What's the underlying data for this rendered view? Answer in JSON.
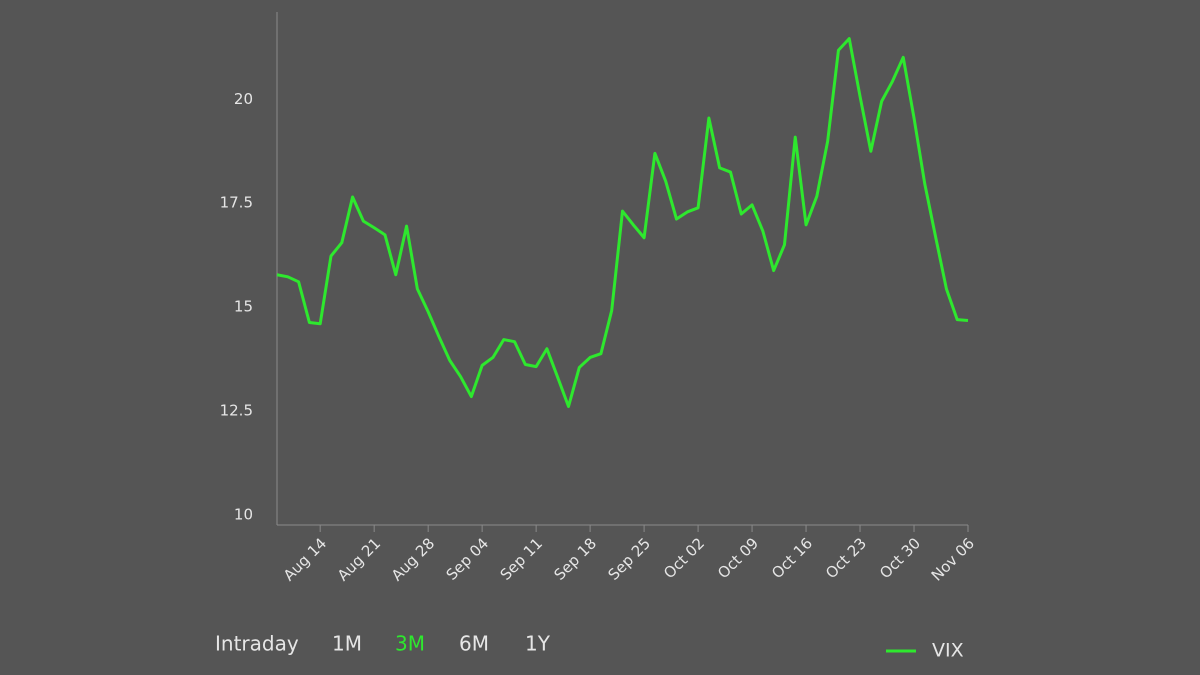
{
  "chart_data": {
    "type": "line",
    "categories": [
      null,
      null,
      null,
      null,
      "Aug 14",
      null,
      null,
      null,
      null,
      "Aug 21",
      null,
      null,
      null,
      null,
      "Aug 28",
      null,
      null,
      null,
      null,
      "Sep 04",
      null,
      null,
      null,
      null,
      "Sep 11",
      null,
      null,
      null,
      null,
      "Sep 18",
      null,
      null,
      null,
      null,
      "Sep 25",
      null,
      null,
      null,
      null,
      "Oct 02",
      null,
      null,
      null,
      null,
      "Oct 09",
      null,
      null,
      null,
      null,
      "Oct 16",
      null,
      null,
      null,
      null,
      "Oct 23",
      null,
      null,
      null,
      null,
      "Oct 30",
      null,
      null,
      null,
      null,
      "Nov 06"
    ],
    "series": [
      {
        "name": "VIX",
        "color": "#2ee82e",
        "values": [
          15.78,
          15.73,
          15.61,
          14.63,
          14.6,
          16.23,
          16.55,
          17.65,
          17.07,
          16.91,
          16.74,
          15.78,
          16.95,
          15.44,
          14.89,
          14.29,
          13.72,
          13.33,
          12.85,
          13.6,
          13.79,
          14.22,
          14.17,
          13.62,
          13.57,
          14.0,
          13.31,
          12.61,
          13.55,
          13.79,
          13.88,
          14.92,
          17.31,
          16.98,
          16.67,
          18.7,
          18.03,
          17.12,
          17.29,
          17.39,
          19.55,
          18.35,
          18.25,
          17.24,
          17.46,
          16.83,
          15.88,
          16.5,
          19.09,
          16.98,
          17.67,
          18.99,
          21.18,
          21.46,
          20.07,
          18.75,
          19.95,
          20.43,
          21.01,
          19.55,
          17.96,
          16.69,
          15.44,
          14.7,
          14.68
        ]
      }
    ],
    "ylim": [
      9.76,
      22.1
    ],
    "yticks": [
      10,
      12.5,
      15,
      17.5,
      20
    ],
    "grid": false,
    "range_buttons": [
      "Intraday",
      "1M",
      "3M",
      "6M",
      "1Y"
    ],
    "active_button": 2
  }
}
